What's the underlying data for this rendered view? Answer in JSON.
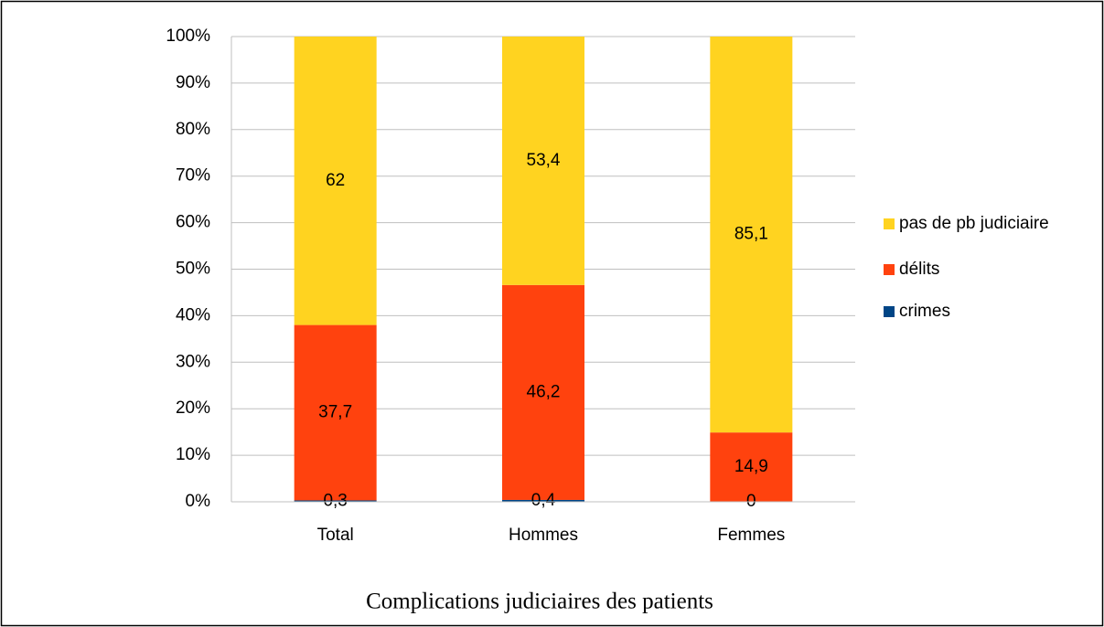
{
  "chart_data": {
    "type": "stacked_bar",
    "title": "Complications judiciaires des patients",
    "categories": [
      "Total",
      "Hommes",
      "Femmes"
    ],
    "series": [
      {
        "name": "crimes",
        "color": "#004586",
        "values": [
          0.3,
          0.4,
          0
        ],
        "value_labels": [
          "0,3",
          "0,4",
          "0"
        ]
      },
      {
        "name": "délits",
        "color": "#ff420e",
        "values": [
          37.7,
          46.2,
          14.9
        ],
        "value_labels": [
          "37,7",
          "46,2",
          "14,9"
        ]
      },
      {
        "name": "pas de pb judiciaire",
        "color": "#ffd320",
        "values": [
          62,
          53.4,
          85.1
        ],
        "value_labels": [
          "62",
          "53,4",
          "85,1"
        ]
      }
    ],
    "ylim": [
      0,
      100
    ],
    "yticks": [
      {
        "value": 0,
        "label": "0%"
      },
      {
        "value": 10,
        "label": "10%"
      },
      {
        "value": 20,
        "label": "20%"
      },
      {
        "value": 30,
        "label": "30%"
      },
      {
        "value": 40,
        "label": "40%"
      },
      {
        "value": 50,
        "label": "50%"
      },
      {
        "value": 60,
        "label": "60%"
      },
      {
        "value": 70,
        "label": "70%"
      },
      {
        "value": 80,
        "label": "80%"
      },
      {
        "value": 90,
        "label": "90%"
      },
      {
        "value": 100,
        "label": "100%"
      }
    ],
    "grid": true,
    "legend": "right"
  }
}
